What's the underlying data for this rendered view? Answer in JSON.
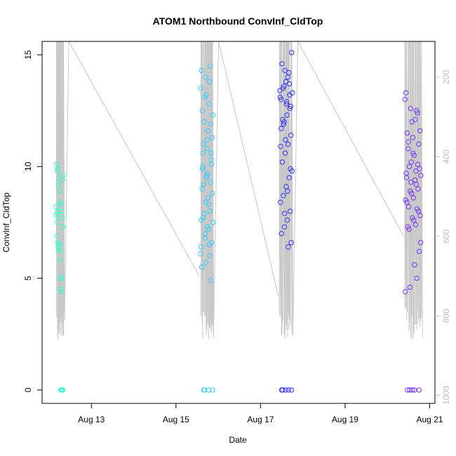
{
  "chart_data": {
    "type": "scatter",
    "title": "ATOM1 Northbound ConvInf_CldTop",
    "xlabel": "Date",
    "ylabel": "ConvInf_CldTop",
    "xlim": [
      "2024-08-11T20:00",
      "2024-08-21T03:00"
    ],
    "ylim": [
      -0.6,
      15.6
    ],
    "x_ticks": [
      {
        "label": "Aug 13",
        "value": "2024-08-13T00:00"
      },
      {
        "label": "Aug 15",
        "value": "2024-08-15T00:00"
      },
      {
        "label": "Aug 17",
        "value": "2024-08-17T00:00"
      },
      {
        "label": "Aug 19",
        "value": "2024-08-19T00:00"
      },
      {
        "label": "Aug 21",
        "value": "2024-08-21T00:00"
      }
    ],
    "y_ticks": [
      0,
      5,
      10,
      15
    ],
    "right_axis": {
      "reversed": true,
      "ticks": [
        200,
        400,
        600,
        800,
        1000
      ],
      "range": [
        1020,
        110
      ],
      "color": "#c0c0c0"
    },
    "grid": false,
    "legend": "none",
    "background_line_color": "#c8c8c8",
    "point_style": "open-circle",
    "series": [
      {
        "color": "#33ffcc",
        "start": "2024-08-12T04:00",
        "end": "2024-08-12T08:00",
        "values": [
          8.2,
          7.9,
          7.5,
          8.0,
          6.3,
          6.5,
          5.8,
          4.5,
          4.4,
          5.0,
          9.4,
          9.6,
          10.1,
          9.8,
          9.9,
          9.2,
          9.5,
          8.9,
          8.4,
          8.3,
          8.0,
          7.7,
          7.3,
          7.8,
          6.9,
          6.6,
          6.4,
          6.5,
          6.2,
          5.0,
          0,
          0,
          0,
          0
        ]
      },
      {
        "color": "#33ccff",
        "start": "2024-08-15T14:00",
        "end": "2024-08-15T21:00",
        "values": [
          6.1,
          6.5,
          7.0,
          7.6,
          8.0,
          8.4,
          9.0,
          9.3,
          9.6,
          10.0,
          10.3,
          10.8,
          11.0,
          11.3,
          11.6,
          12.0,
          12.3,
          12.8,
          13.1,
          13.5,
          13.8,
          14.0,
          14.3,
          14.5,
          13.2,
          12.5,
          11.9,
          11.2,
          10.6,
          10.1,
          9.7,
          9.2,
          8.8,
          8.3,
          7.9,
          7.5,
          7.2,
          6.8,
          6.4,
          6.0,
          5.7,
          5.5,
          4.9,
          9.5,
          9.9,
          10.6,
          7.3,
          7.7,
          6.6,
          8.6,
          0,
          0,
          0,
          0
        ]
      },
      {
        "color": "#3333ff",
        "start": "2024-08-17T11:00",
        "end": "2024-08-17T18:00",
        "values": [
          13.4,
          13.2,
          12.9,
          13.6,
          13.0,
          12.7,
          14.0,
          14.3,
          14.6,
          15.1,
          14.2,
          13.8,
          13.5,
          13.1,
          12.6,
          12.3,
          12.0,
          11.7,
          11.4,
          11.0,
          10.6,
          10.2,
          9.8,
          9.5,
          9.1,
          8.7,
          8.4,
          8.0,
          7.6,
          7.3,
          7.0,
          6.6,
          6.4,
          11.2,
          12.1,
          13.3,
          13.7,
          12.8,
          11.9,
          10.9,
          9.9,
          8.9,
          7.9,
          0,
          0,
          0,
          0,
          0
        ]
      },
      {
        "color": "#7733ff",
        "start": "2024-08-20T10:00",
        "end": "2024-08-20T19:00",
        "values": [
          13.0,
          12.5,
          12.0,
          11.5,
          11.0,
          10.5,
          10.0,
          9.6,
          9.2,
          8.8,
          8.4,
          8.0,
          7.6,
          7.2,
          6.6,
          9.8,
          10.2,
          9.5,
          9.0,
          8.6,
          8.2,
          7.8,
          7.4,
          9.3,
          9.7,
          10.1,
          10.6,
          11.1,
          11.6,
          12.1,
          12.6,
          13.3,
          12.4,
          11.3,
          10.8,
          9.9,
          9.4,
          8.9,
          8.5,
          8.1,
          7.7,
          7.3,
          6.2,
          5.6,
          4.6,
          4.4,
          5.0,
          0,
          0,
          0,
          0,
          0
        ]
      }
    ]
  }
}
